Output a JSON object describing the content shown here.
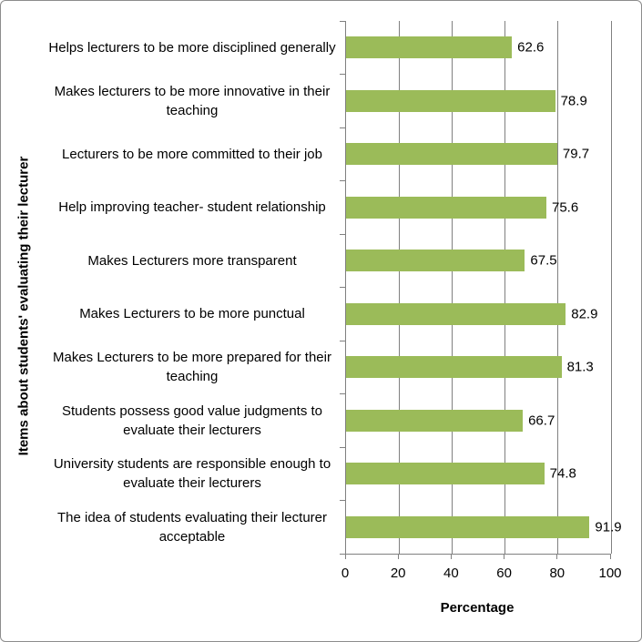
{
  "chart_data": {
    "type": "bar",
    "orientation": "horizontal",
    "title": "",
    "xlabel": "Percentage",
    "ylabel": "Items about students' evaluating their lecturer",
    "categories": [
      "Helps lecturers to be more disciplined generally",
      "Makes lecturers to be more innovative in their teaching",
      "Lecturers to be more committed to their job",
      "Help improving teacher- student relationship",
      "Makes Lecturers more transparent",
      "Makes Lecturers to be more punctual",
      "Makes Lecturers to be more prepared for their teaching",
      "Students possess good value judgments to evaluate their lecturers",
      "University students are responsible enough to evaluate their lecturers",
      "The idea of students evaluating their lecturer acceptable"
    ],
    "values": [
      62.6,
      78.9,
      79.7,
      75.6,
      67.5,
      82.9,
      81.3,
      66.7,
      74.8,
      91.9
    ],
    "value_labels": [
      "62.6",
      "78.9",
      "79.7",
      "75.6",
      "67.5",
      "82.9",
      "81.3",
      "66.7",
      "74.8",
      "91.9"
    ],
    "xlim": [
      0,
      100
    ],
    "xticks": [
      0,
      20,
      40,
      60,
      80,
      100
    ],
    "xtick_labels": [
      "0",
      "20",
      "40",
      "60",
      "80",
      "100"
    ],
    "grid": "vertical-gridlines-only",
    "legend": "none",
    "colors": {
      "bar": "#9BBB59",
      "gridline": "#808080",
      "axis": "#808080",
      "text": "#000000",
      "chart_border": "#8C8C8C"
    }
  }
}
